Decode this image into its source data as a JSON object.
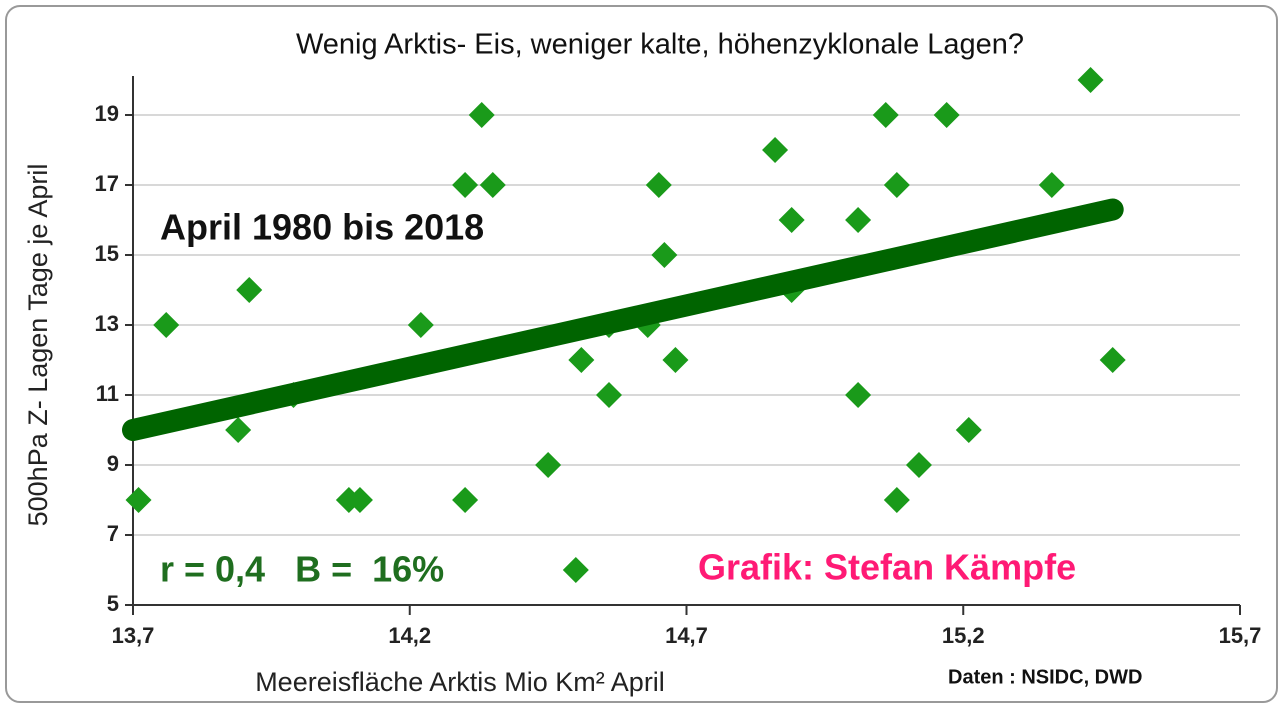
{
  "chart_data": {
    "type": "scatter",
    "title": "Wenig Arktis- Eis, weniger kalte, höhenzyklonale Lagen?",
    "x_label": "Meereisfläche Arktis Mio Km² April",
    "y_label": "500hPa Z- Lagen Tage je April",
    "annotations": [
      "April 1980 bis 2018",
      "r = 0,4   B =  16%",
      "Grafik: Stefan Kämpfe",
      "Daten : NSIDC, DWD"
    ],
    "xlim": [
      13.7,
      15.7
    ],
    "ylim": [
      5,
      20
    ],
    "xticks": [
      {
        "value": 13.7,
        "label": "13,7"
      },
      {
        "value": 14.2,
        "label": "14,2"
      },
      {
        "value": 14.7,
        "label": "14,7"
      },
      {
        "value": 15.2,
        "label": "15,2"
      },
      {
        "value": 15.7,
        "label": "15,7"
      }
    ],
    "yticks": [
      5,
      7,
      9,
      11,
      13,
      15,
      17,
      19
    ],
    "grid": true,
    "series": [
      {
        "color": "#1a9a1a",
        "x": [
          13.71,
          13.76,
          13.91,
          13.89,
          13.99,
          14.09,
          14.11,
          14.22,
          14.3,
          14.3,
          14.33,
          14.35,
          14.45,
          14.5,
          14.51,
          14.56,
          14.56,
          14.63,
          14.65,
          14.66,
          14.68,
          14.86,
          14.89,
          14.89,
          15.01,
          15.01,
          15.06,
          15.08,
          15.08,
          15.12,
          15.17,
          15.21,
          15.36,
          15.43,
          15.47
        ],
        "values": [
          8,
          13,
          14,
          10,
          11,
          8,
          8,
          13,
          8,
          17,
          19,
          17,
          9,
          6,
          12,
          11,
          13,
          13,
          17,
          15,
          12,
          18,
          16,
          14,
          16,
          11,
          19,
          17,
          8,
          9,
          19,
          10,
          17,
          20,
          12
        ]
      }
    ],
    "trend": {
      "color": "#006400",
      "x": [
        13.7,
        15.47
      ],
      "values": [
        10,
        16.3
      ]
    }
  }
}
